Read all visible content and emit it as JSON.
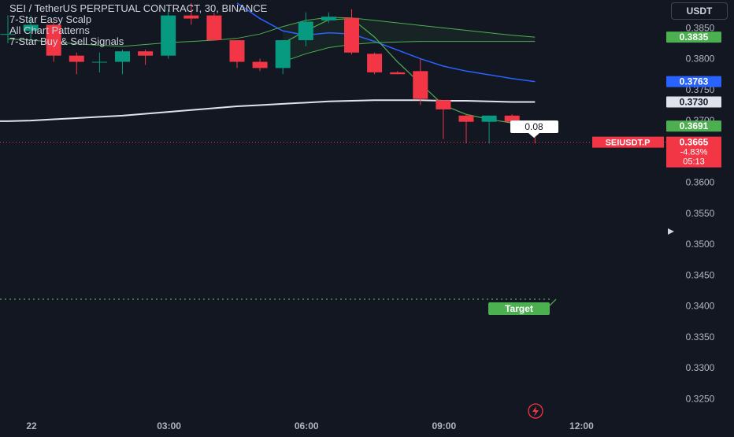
{
  "header": {
    "symbol_title": "SEI / TetherUS PERPETUAL CONTRACT, 30, BINANCE",
    "indicators": [
      "7-Star Easy Scalp",
      "All Chart Patterns",
      "7-Star Buy & Sell Signals"
    ],
    "currency": "USDT"
  },
  "price_tag": {
    "symbol": "SEIUSDT.P",
    "price": "0.3665",
    "change": "-4.83%",
    "countdown": "05:13"
  },
  "badges": [
    {
      "label": "0.3835",
      "value": 0.3835,
      "color": "#4caf50",
      "text_color": "#ffffff"
    },
    {
      "label": "0.3763",
      "value": 0.3763,
      "color": "#2962ff",
      "text_color": "#ffffff"
    },
    {
      "label": "0.3730",
      "value": 0.373,
      "color": "#e0e3eb",
      "text_color": "#131722"
    },
    {
      "label": "0.3691",
      "value": 0.3691,
      "color": "#4caf50",
      "text_color": "#ffffff"
    }
  ],
  "annotations": {
    "signal_value": "0.08",
    "target_label": "Target",
    "target_level": 0.3411
  },
  "colors": {
    "up": "#089981",
    "down": "#f23645",
    "blue_ma": "#2962ff",
    "white_ma": "#e0e3eb",
    "green_band": "#4caf50",
    "current_price": "#f23645"
  },
  "chart_data": {
    "type": "candlestick",
    "title": "SEI / TetherUS PERPETUAL CONTRACT, 30, BINANCE",
    "y_ticks": [
      "0.3850",
      "0.3800",
      "0.3750",
      "0.3700",
      "0.3650",
      "0.3600",
      "0.3550",
      "0.3500",
      "0.3450",
      "0.3400",
      "0.3350",
      "0.3300",
      "0.3250"
    ],
    "y_values": [
      0.385,
      0.38,
      0.375,
      0.37,
      0.365,
      0.36,
      0.355,
      0.35,
      0.345,
      0.34,
      0.335,
      0.33,
      0.325
    ],
    "ylim": [
      0.322,
      0.3895
    ],
    "x_ticks": [
      {
        "label": "22",
        "i": 0
      },
      {
        "label": "03:00",
        "i": 6
      },
      {
        "label": "06:00",
        "i": 12
      },
      {
        "label": "09:00",
        "i": 18
      },
      {
        "label": "12:00",
        "i": 24
      }
    ],
    "candles": [
      {
        "o": 0.384,
        "h": 0.387,
        "l": 0.3825,
        "c": 0.384
      },
      {
        "o": 0.3845,
        "h": 0.387,
        "l": 0.383,
        "c": 0.3855
      },
      {
        "o": 0.3855,
        "h": 0.386,
        "l": 0.3795,
        "c": 0.3805
      },
      {
        "o": 0.3805,
        "h": 0.381,
        "l": 0.3775,
        "c": 0.3795
      },
      {
        "o": 0.3794,
        "h": 0.381,
        "l": 0.3778,
        "c": 0.3795
      },
      {
        "o": 0.3795,
        "h": 0.3815,
        "l": 0.3775,
        "c": 0.3812
      },
      {
        "o": 0.3812,
        "h": 0.3815,
        "l": 0.379,
        "c": 0.3805
      },
      {
        "o": 0.3805,
        "h": 0.388,
        "l": 0.38,
        "c": 0.387
      },
      {
        "o": 0.387,
        "h": 0.389,
        "l": 0.3855,
        "c": 0.3865
      },
      {
        "o": 0.387,
        "h": 0.3875,
        "l": 0.383,
        "c": 0.383
      },
      {
        "o": 0.383,
        "h": 0.383,
        "l": 0.3785,
        "c": 0.3795
      },
      {
        "o": 0.3795,
        "h": 0.38,
        "l": 0.378,
        "c": 0.3785
      },
      {
        "o": 0.3785,
        "h": 0.383,
        "l": 0.3775,
        "c": 0.383
      },
      {
        "o": 0.383,
        "h": 0.3875,
        "l": 0.382,
        "c": 0.386
      },
      {
        "o": 0.3862,
        "h": 0.3875,
        "l": 0.3858,
        "c": 0.3868
      },
      {
        "o": 0.3866,
        "h": 0.388,
        "l": 0.3807,
        "c": 0.381
      },
      {
        "o": 0.3808,
        "h": 0.381,
        "l": 0.3775,
        "c": 0.3778
      },
      {
        "o": 0.3778,
        "h": 0.378,
        "l": 0.3775,
        "c": 0.3775
      },
      {
        "o": 0.378,
        "h": 0.38,
        "l": 0.3725,
        "c": 0.3735
      },
      {
        "o": 0.3733,
        "h": 0.3733,
        "l": 0.367,
        "c": 0.3718
      },
      {
        "o": 0.3708,
        "h": 0.371,
        "l": 0.3663,
        "c": 0.3698
      },
      {
        "o": 0.3698,
        "h": 0.3706,
        "l": 0.3663,
        "c": 0.3708
      },
      {
        "o": 0.3708,
        "h": 0.371,
        "l": 0.368,
        "c": 0.3698
      },
      {
        "o": 0.369,
        "h": 0.369,
        "l": 0.3663,
        "c": 0.368
      }
    ],
    "series": [
      {
        "color": "#e0e3eb",
        "values": [
          0.3699,
          0.37,
          0.3702,
          0.3704,
          0.3706,
          0.3708,
          0.3711,
          0.3714,
          0.3717,
          0.372,
          0.3723,
          0.3725,
          0.3727,
          0.3729,
          0.3731,
          0.3732,
          0.3733,
          0.3733,
          0.3733,
          0.3732,
          0.3732,
          0.3731,
          0.373,
          0.373
        ]
      },
      {
        "color": "#2962ff",
        "values": [
          null,
          null,
          null,
          null,
          null,
          null,
          null,
          null,
          null,
          null,
          0.389,
          0.3865,
          0.3845,
          0.3838,
          0.3842,
          0.384,
          0.3828,
          0.3814,
          0.38,
          0.3788,
          0.378,
          0.3774,
          0.3768,
          0.3763
        ]
      },
      {
        "color": "#4caf50",
        "values": [
          null,
          null,
          null,
          null,
          null,
          null,
          null,
          null,
          null,
          null,
          null,
          null,
          0.3825,
          0.3845,
          0.3863,
          0.3865,
          0.3835,
          0.3795,
          0.376,
          0.3725,
          0.371,
          0.3702,
          0.3696,
          0.3691
        ]
      },
      {
        "color": "#4caf50",
        "values": [
          0.3832,
          0.383,
          0.3827,
          0.3824,
          0.3822,
          0.382,
          0.3823,
          0.3826,
          0.3828,
          0.383,
          0.3833,
          0.384,
          0.3852,
          0.3862,
          0.3867,
          0.3866,
          0.3862,
          0.3858,
          0.3854,
          0.385,
          0.3846,
          0.3842,
          0.3838,
          0.3835
        ]
      },
      {
        "color": "#4caf50",
        "values": [
          null,
          null,
          null,
          null,
          null,
          null,
          null,
          null,
          null,
          null,
          null,
          null,
          0.3795,
          0.3808,
          0.3818,
          0.3823,
          0.3826,
          0.3827,
          0.3828,
          0.3828,
          0.3828,
          0.3828,
          0.3828,
          0.3828
        ]
      }
    ],
    "current_price": 0.3665,
    "grid": false
  }
}
